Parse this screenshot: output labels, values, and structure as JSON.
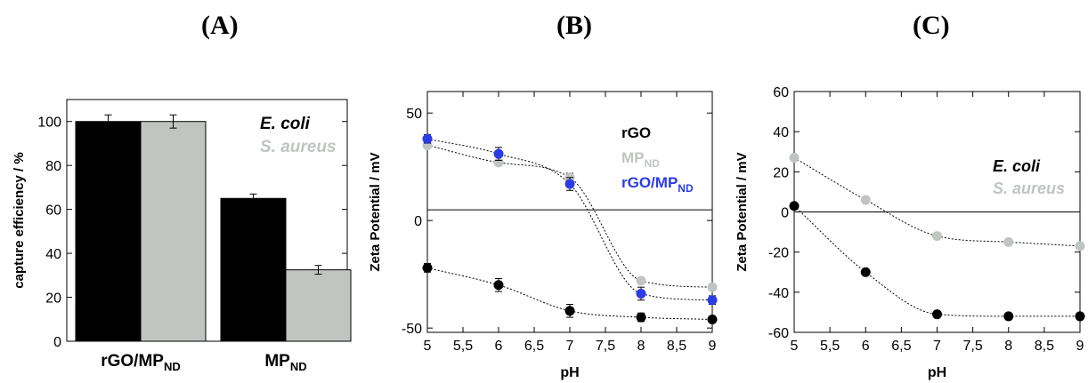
{
  "chart_data": [
    {
      "panel": "(A)",
      "type": "bar",
      "ylabel": "capture efficiency / %",
      "ylim": [
        0,
        110
      ],
      "yticks": [
        0,
        20,
        40,
        60,
        80,
        100
      ],
      "categories": [
        {
          "main": "rGO/MP",
          "sub": "ND"
        },
        {
          "main": "MP",
          "sub": "ND"
        }
      ],
      "series": [
        {
          "name": "E. coli",
          "color": "#000000",
          "values": [
            100,
            65
          ],
          "errors": [
            3,
            2
          ]
        },
        {
          "name": "S. aureus",
          "color": "#c0c5c1",
          "values": [
            100,
            32.5
          ],
          "errors": [
            3,
            2
          ]
        }
      ],
      "legend_position": "top-right",
      "grid": false
    },
    {
      "panel": "(B)",
      "type": "scatter",
      "xlabel": "pH",
      "ylabel": "Zeta Potential  / mV",
      "xlim": [
        5,
        9
      ],
      "ylim": [
        -52,
        60
      ],
      "xticks": [
        "5",
        "5,5",
        "6",
        "6,5",
        "7",
        "7,5",
        "8",
        "8,5",
        "9"
      ],
      "yticks": [
        -50,
        0,
        50
      ],
      "reference_line_y": 5,
      "series": [
        {
          "name": "rGO",
          "sub": "",
          "color": "#000000",
          "x": [
            5,
            6,
            7,
            8,
            9
          ],
          "y": [
            -22,
            -30,
            -42,
            -45,
            -46
          ],
          "errors": [
            2,
            3,
            3,
            2,
            0
          ]
        },
        {
          "name": "MP",
          "sub": "ND",
          "color": "#c0c5c1",
          "x": [
            5,
            6,
            7,
            8,
            9
          ],
          "y": [
            35,
            27,
            20,
            -28,
            -31
          ],
          "errors": [
            0,
            0,
            2,
            0,
            0
          ]
        },
        {
          "name": "rGO/MP",
          "sub": "ND",
          "color": "#2b3be6",
          "x": [
            5,
            6,
            7,
            8,
            9
          ],
          "y": [
            38,
            31,
            17,
            -34,
            -37
          ],
          "errors": [
            2,
            3,
            3,
            3,
            2
          ]
        }
      ],
      "legend_position": "top-right",
      "grid": false
    },
    {
      "panel": "(C)",
      "type": "scatter",
      "xlabel": "pH",
      "ylabel": "Zeta Potential  / mV",
      "xlim": [
        5,
        9
      ],
      "ylim": [
        -60,
        60
      ],
      "xticks": [
        "5",
        "5,5",
        "6",
        "6,5",
        "7",
        "7,5",
        "8",
        "8,5",
        "9"
      ],
      "yticks": [
        -60,
        -40,
        -20,
        0,
        20,
        40,
        60
      ],
      "reference_line_y": 0,
      "series": [
        {
          "name": "E. coli",
          "color": "#000000",
          "x": [
            5,
            6,
            7,
            8,
            9
          ],
          "y": [
            3,
            -30,
            -51,
            -52,
            -52
          ]
        },
        {
          "name": "S. aureus",
          "color": "#c0c5c1",
          "x": [
            5,
            6,
            7,
            8,
            9
          ],
          "y": [
            27,
            6,
            -12,
            -15,
            -17
          ]
        }
      ],
      "legend_position": "top-right",
      "grid": false
    }
  ]
}
